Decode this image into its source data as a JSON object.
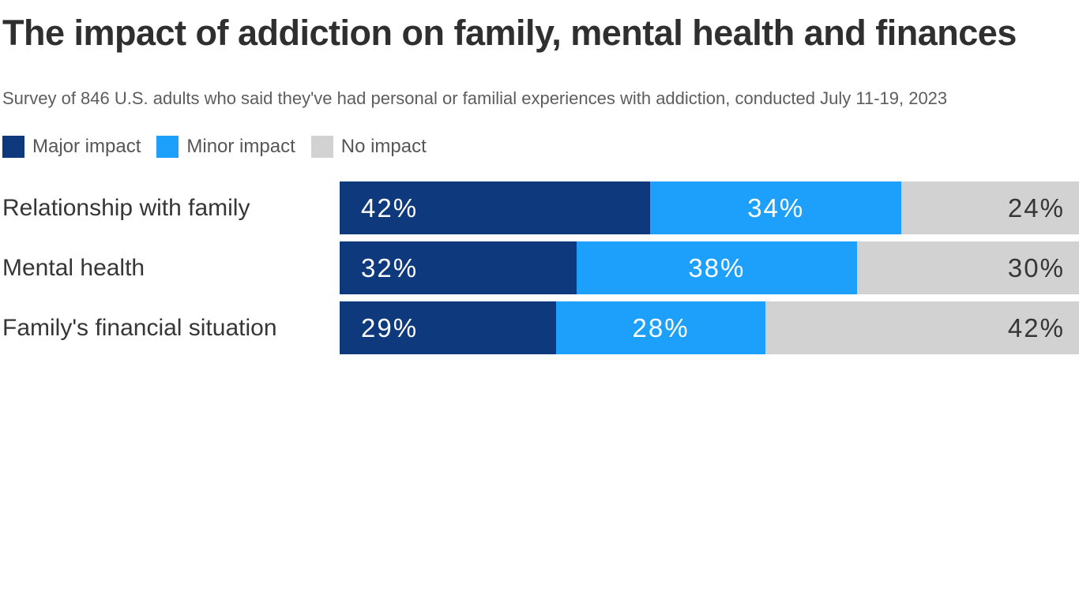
{
  "page": {
    "background": "#ffffff"
  },
  "colors": {
    "major_impact": "#0e3a7d",
    "minor_impact": "#1da0fb",
    "no_impact": "#d2d2d2",
    "title_text": "#2f2f2f",
    "subtitle_text": "#5d5d5d",
    "category_text": "#363636"
  },
  "legend": [
    {
      "label": "Major impact",
      "color": "#0e3a7d"
    },
    {
      "label": "Minor impact",
      "color": "#1da0fb"
    },
    {
      "label": "No impact",
      "color": "#d2d2d2"
    }
  ],
  "chart_data": {
    "type": "bar",
    "orientation": "horizontal",
    "stacked": true,
    "title": "The impact of addiction on family, mental health and finances",
    "subtitle": "Survey of 846 U.S. adults who said they've had personal or familial experiences with addiction, conducted July 11-19, 2023",
    "categories": [
      "Relationship with family",
      "Mental health",
      "Family's financial situation"
    ],
    "series": [
      {
        "name": "Major impact",
        "color": "#0e3a7d",
        "label_color": "#ffffff",
        "values": [
          42,
          32,
          29
        ]
      },
      {
        "name": "Minor impact",
        "color": "#1da0fb",
        "label_color": "#ffffff",
        "values": [
          34,
          38,
          28
        ]
      },
      {
        "name": "No impact",
        "color": "#d2d2d2",
        "label_color": "#363636",
        "values": [
          24,
          30,
          42
        ]
      }
    ],
    "value_suffix": "%",
    "xlim": [
      0,
      100
    ],
    "grid": false,
    "legend_position": "top",
    "value_labels": "inside"
  }
}
